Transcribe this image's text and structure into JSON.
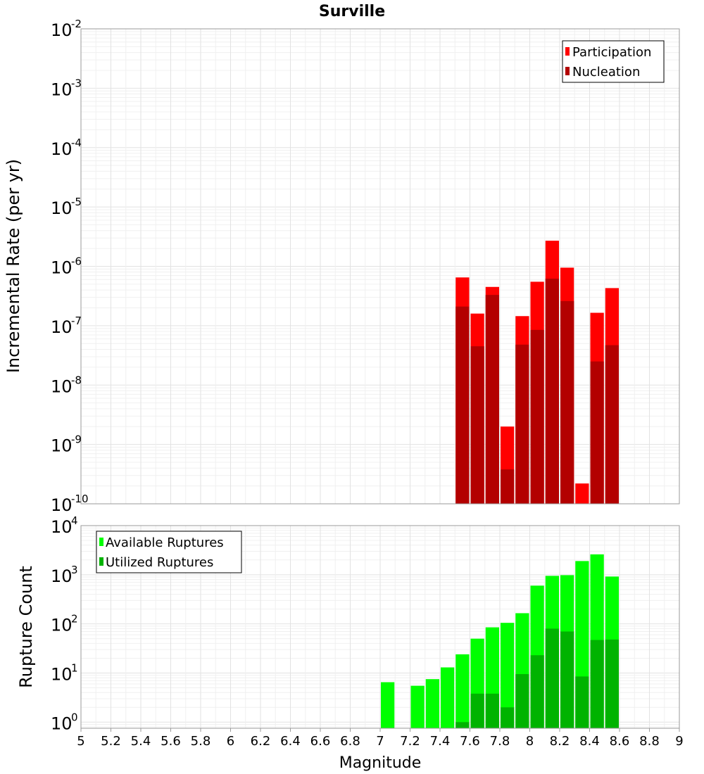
{
  "chart_data": [
    {
      "type": "bar",
      "title": "Surville",
      "xlabel": "",
      "ylabel": "Incremental Rate (per yr)",
      "yscale": "log",
      "xlim": [
        5,
        9
      ],
      "ylim": [
        1e-10,
        0.01
      ],
      "ytick_exponents": [
        "-2",
        "-3",
        "-4",
        "-5",
        "-6",
        "-7",
        "-8",
        "-9",
        "-10"
      ],
      "bin_width": 0.1,
      "x": [
        7.55,
        7.65,
        7.75,
        7.85,
        7.95,
        8.05,
        8.15,
        8.25,
        8.35,
        8.45,
        8.55
      ],
      "legend_position": "top-right",
      "series": [
        {
          "name": "Participation",
          "color": "#ff0000",
          "values": [
            6.5e-07,
            1.6e-07,
            4.5e-07,
            2e-09,
            1.45e-07,
            5.5e-07,
            2.7e-06,
            9.5e-07,
            2.2e-10,
            1.65e-07,
            4.3e-07
          ]
        },
        {
          "name": "Nucleation",
          "color": "#b30000",
          "values": [
            2.1e-07,
            4.5e-08,
            3.3e-07,
            3.8e-10,
            4.8e-08,
            8.5e-08,
            6.2e-07,
            2.6e-07,
            null,
            2.5e-08,
            4.7e-08
          ]
        }
      ]
    },
    {
      "type": "bar",
      "ylabel": "Rupture Count",
      "xlabel": "Magnitude",
      "yscale": "log",
      "xlim": [
        5,
        9
      ],
      "ylim": [
        0.75,
        10000.0
      ],
      "ytick_exponents": [
        "4",
        "3",
        "2",
        "1",
        "0"
      ],
      "x_ticks": [
        "5",
        "5.2",
        "5.4",
        "5.6",
        "5.8",
        "6",
        "6.2",
        "6.4",
        "6.6",
        "6.8",
        "7",
        "7.2",
        "7.4",
        "7.6",
        "7.8",
        "8",
        "8.2",
        "8.4",
        "8.6",
        "8.8",
        "9"
      ],
      "bin_width": 0.1,
      "x": [
        7.05,
        7.25,
        7.35,
        7.45,
        7.55,
        7.65,
        7.75,
        7.85,
        7.95,
        8.05,
        8.15,
        8.25,
        8.35,
        8.45,
        8.55
      ],
      "legend_position": "top-left",
      "series": [
        {
          "name": "Available Ruptures",
          "color": "#00ff00",
          "values": [
            6.5,
            5.5,
            7.5,
            13,
            24,
            50,
            85,
            105,
            165,
            600,
            950,
            980,
            1900,
            2600,
            920
          ]
        },
        {
          "name": "Utilized Ruptures",
          "color": "#00b300",
          "values": [
            null,
            null,
            null,
            null,
            1,
            3.8,
            3.8,
            2,
            9.5,
            23,
            80,
            70,
            8.5,
            47,
            48
          ]
        }
      ]
    }
  ]
}
